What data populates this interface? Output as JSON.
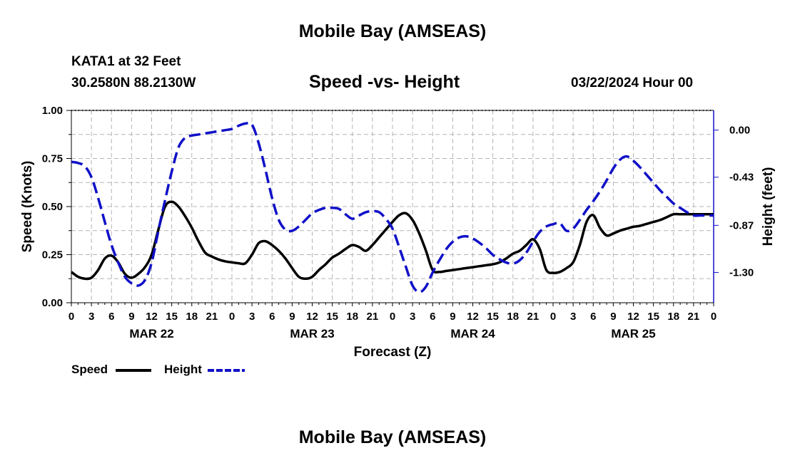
{
  "page": {
    "title": "Mobile Bay (AMSEAS)",
    "station": "KATA1 at 32 Feet",
    "coords": "30.2580N  88.2130W",
    "subtitle": "Speed -vs- Height",
    "datetime": "03/22/2024 Hour 00",
    "footer_title": "Mobile Bay (AMSEAS)"
  },
  "legend": {
    "speed_label": "Speed",
    "height_label": "Height"
  },
  "colors": {
    "speed": "#000000",
    "height": "#1010c8",
    "grid": "#b4b4b4"
  },
  "chart_data": {
    "type": "line",
    "title": "Speed -vs- Height",
    "xlabel": "Forecast (Z)",
    "ylabel": "Speed (Knots)",
    "y2label": "Height (feet)",
    "xlim": [
      0,
      96
    ],
    "ylim": [
      0,
      1
    ],
    "y2lim": [
      -1.577,
      0.18
    ],
    "x_ticks": [
      0,
      3,
      6,
      9,
      12,
      15,
      18,
      21,
      24,
      27,
      30,
      33,
      36,
      39,
      42,
      45,
      48,
      51,
      54,
      57,
      60,
      63,
      66,
      69,
      72,
      75,
      78,
      81,
      84,
      87,
      90,
      93,
      96
    ],
    "x_tick_labels": [
      "0",
      "3",
      "6",
      "9",
      "12",
      "15",
      "18",
      "21",
      "0",
      "3",
      "6",
      "9",
      "12",
      "15",
      "18",
      "21",
      "0",
      "3",
      "6",
      "9",
      "12",
      "15",
      "18",
      "21",
      "0",
      "3",
      "6",
      "9",
      "12",
      "15",
      "18",
      "21",
      "0"
    ],
    "day_labels": [
      {
        "x": 12,
        "label": "MAR 22"
      },
      {
        "x": 36,
        "label": "MAR 23"
      },
      {
        "x": 60,
        "label": "MAR 24"
      },
      {
        "x": 84,
        "label": "MAR 25"
      }
    ],
    "y_ticks": [
      0,
      0.25,
      0.5,
      0.75,
      1.0
    ],
    "y_tick_labels": [
      "0.00",
      "0.25",
      "0.50",
      "0.75",
      "1.00"
    ],
    "y2_ticks": [
      0,
      -0.43,
      -0.87,
      -1.3
    ],
    "y2_tick_labels": [
      "0.00",
      "-0.43",
      "-0.87",
      "-1.30"
    ],
    "series": [
      {
        "name": "Speed",
        "axis": "left",
        "style": "solid",
        "x": [
          0,
          1,
          2,
          3,
          4,
          5,
          6,
          7,
          8,
          9,
          10,
          11,
          12,
          13,
          14,
          15,
          16,
          17,
          18,
          19,
          20,
          21,
          22,
          23,
          24,
          25,
          26,
          27,
          28,
          29,
          30,
          31,
          32,
          33,
          34,
          35,
          36,
          37,
          38,
          39,
          40,
          41,
          42,
          43,
          44,
          45,
          46,
          47,
          48,
          49,
          50,
          51,
          52,
          53,
          54,
          55,
          56,
          57,
          58,
          59,
          60,
          61,
          62,
          63,
          64,
          65,
          66,
          67,
          68,
          69,
          70,
          71,
          72,
          73,
          74,
          75,
          76,
          77,
          78,
          79,
          80,
          81,
          82,
          83,
          84,
          85,
          86,
          87,
          88,
          89,
          90,
          91,
          92,
          93,
          94,
          95,
          96
        ],
        "values": [
          0.16,
          0.135,
          0.125,
          0.13,
          0.17,
          0.23,
          0.245,
          0.21,
          0.15,
          0.13,
          0.15,
          0.185,
          0.25,
          0.38,
          0.5,
          0.525,
          0.5,
          0.45,
          0.39,
          0.32,
          0.26,
          0.24,
          0.225,
          0.215,
          0.21,
          0.205,
          0.205,
          0.25,
          0.31,
          0.32,
          0.3,
          0.27,
          0.23,
          0.18,
          0.135,
          0.125,
          0.135,
          0.17,
          0.2,
          0.235,
          0.255,
          0.28,
          0.3,
          0.29,
          0.27,
          0.3,
          0.34,
          0.38,
          0.42,
          0.455,
          0.465,
          0.43,
          0.36,
          0.27,
          0.17,
          0.16,
          0.165,
          0.17,
          0.175,
          0.18,
          0.185,
          0.19,
          0.195,
          0.2,
          0.21,
          0.23,
          0.255,
          0.27,
          0.3,
          0.33,
          0.28,
          0.17,
          0.155,
          0.16,
          0.18,
          0.21,
          0.3,
          0.42,
          0.455,
          0.39,
          0.35,
          0.36,
          0.375,
          0.385,
          0.395,
          0.4,
          0.41,
          0.42,
          0.43,
          0.445,
          0.46,
          0.46,
          0.46,
          0.46,
          0.46,
          0.46,
          0.46
        ]
      },
      {
        "name": "Height",
        "axis": "right",
        "style": "dashed",
        "x": [
          0,
          1,
          2,
          3,
          4,
          5,
          6,
          7,
          8,
          9,
          10,
          11,
          12,
          13,
          14,
          15,
          16,
          17,
          18,
          19,
          20,
          21,
          22,
          23,
          24,
          25,
          26,
          27,
          28,
          29,
          30,
          31,
          32,
          33,
          34,
          35,
          36,
          37,
          38,
          39,
          40,
          41,
          42,
          43,
          44,
          45,
          46,
          47,
          48,
          49,
          50,
          51,
          52,
          53,
          54,
          55,
          56,
          57,
          58,
          59,
          60,
          61,
          62,
          63,
          64,
          65,
          66,
          67,
          68,
          69,
          70,
          71,
          72,
          73,
          74,
          75,
          76,
          77,
          78,
          79,
          80,
          81,
          82,
          83,
          84,
          85,
          86,
          87,
          88,
          89,
          90,
          91,
          92,
          93,
          94,
          95,
          96
        ],
        "values": [
          -0.29,
          -0.3,
          -0.33,
          -0.43,
          -0.62,
          -0.84,
          -1.05,
          -1.21,
          -1.34,
          -1.4,
          -1.42,
          -1.37,
          -1.21,
          -0.92,
          -0.64,
          -0.38,
          -0.16,
          -0.07,
          -0.05,
          -0.04,
          -0.03,
          -0.02,
          -0.01,
          0.0,
          0.01,
          0.04,
          0.06,
          0.05,
          -0.12,
          -0.36,
          -0.62,
          -0.82,
          -0.91,
          -0.92,
          -0.88,
          -0.82,
          -0.76,
          -0.73,
          -0.71,
          -0.71,
          -0.72,
          -0.77,
          -0.81,
          -0.78,
          -0.75,
          -0.74,
          -0.75,
          -0.81,
          -0.9,
          -1.07,
          -1.25,
          -1.42,
          -1.48,
          -1.43,
          -1.3,
          -1.19,
          -1.09,
          -1.02,
          -0.98,
          -0.97,
          -0.99,
          -1.03,
          -1.08,
          -1.14,
          -1.18,
          -1.21,
          -1.22,
          -1.19,
          -1.12,
          -1.02,
          -0.93,
          -0.88,
          -0.86,
          -0.85,
          -0.92,
          -0.9,
          -0.82,
          -0.73,
          -0.65,
          -0.56,
          -0.46,
          -0.35,
          -0.27,
          -0.24,
          -0.28,
          -0.34,
          -0.41,
          -0.48,
          -0.55,
          -0.61,
          -0.67,
          -0.71,
          -0.75,
          -0.78,
          -0.78,
          -0.78,
          -0.78
        ]
      }
    ]
  }
}
